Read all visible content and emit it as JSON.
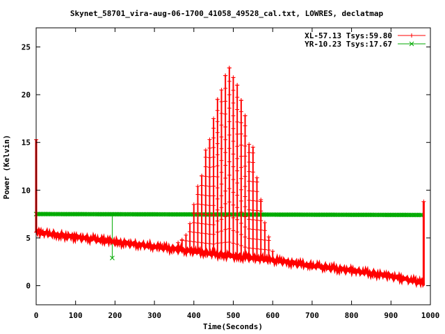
{
  "chart_data": {
    "type": "line",
    "title": "Skynet_58701_vira-aug-06-1700_41058_49528_cal.txt, LOWRES, declatmap",
    "xlabel": "Time(Seconds)",
    "ylabel": "Power (Kelvin)",
    "xlim": [
      0,
      1000
    ],
    "ylim": [
      -2,
      27
    ],
    "x_ticks": [
      0,
      100,
      200,
      300,
      400,
      500,
      600,
      700,
      800,
      900,
      1000
    ],
    "y_ticks": [
      0,
      5,
      10,
      15,
      20,
      25
    ],
    "grid": false,
    "legend_position": "top-right",
    "series": [
      {
        "name": "XL-57.13 Tsys:59.80",
        "color": "#ff0000",
        "marker": "plus",
        "baseline": [
          [
            0,
            5.6
          ],
          [
            100,
            5.1
          ],
          [
            200,
            4.6
          ],
          [
            300,
            4.1
          ],
          [
            400,
            3.6
          ],
          [
            500,
            3.1
          ],
          [
            600,
            2.7
          ],
          [
            700,
            2.1
          ],
          [
            800,
            1.6
          ],
          [
            900,
            1.0
          ],
          [
            980,
            0.3
          ]
        ],
        "scan_peaks": [
          [
            360,
            4.5
          ],
          [
            370,
            4.8
          ],
          [
            380,
            5.3
          ],
          [
            390,
            6.5
          ],
          [
            400,
            8.5
          ],
          [
            410,
            10.4
          ],
          [
            420,
            11.5
          ],
          [
            430,
            14.2
          ],
          [
            440,
            15.3
          ],
          [
            450,
            17.5
          ],
          [
            460,
            19.5
          ],
          [
            470,
            20.5
          ],
          [
            480,
            22.0
          ],
          [
            490,
            22.8
          ],
          [
            500,
            21.8
          ],
          [
            510,
            21.0
          ],
          [
            520,
            19.4
          ],
          [
            530,
            17.8
          ],
          [
            540,
            14.8
          ],
          [
            550,
            14.5
          ],
          [
            560,
            11.3
          ],
          [
            570,
            9.0
          ],
          [
            580,
            6.6
          ],
          [
            590,
            5.1
          ],
          [
            600,
            3.6
          ]
        ],
        "spikes": [
          [
            0,
            15.3
          ],
          [
            983,
            8.8
          ]
        ]
      },
      {
        "name": "YR-10.23 Tsys:17.67",
        "color": "#00aa00",
        "marker": "cross",
        "baseline": [
          [
            0,
            7.5
          ],
          [
            1000,
            7.4
          ]
        ],
        "dips": [
          [
            193,
            2.9
          ]
        ],
        "end_drop": [
          983,
          0.0
        ]
      }
    ]
  }
}
